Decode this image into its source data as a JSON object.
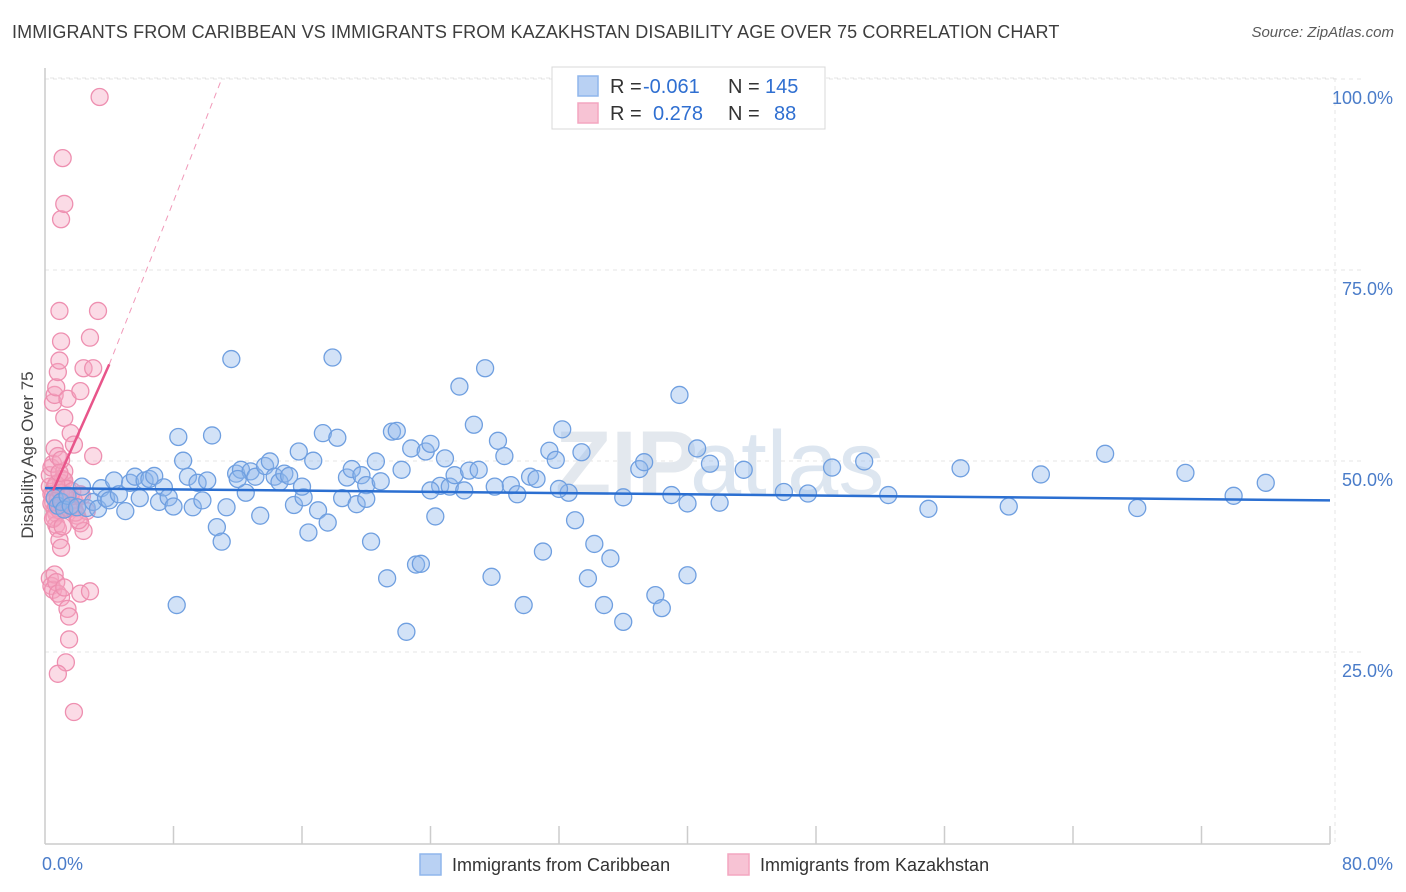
{
  "title": "IMMIGRANTS FROM CARIBBEAN VS IMMIGRANTS FROM KAZAKHSTAN DISABILITY AGE OVER 75 CORRELATION CHART",
  "source": "Source: ZipAtlas.com",
  "watermark": {
    "zip": "ZIP",
    "atlas": "atlas"
  },
  "legend": {
    "r_label": "R =",
    "n_label": "N =",
    "rows": [
      {
        "r": "-0.061",
        "n": "145"
      },
      {
        "r": "0.278",
        "n": "88"
      }
    ]
  },
  "chart_data": {
    "type": "scatter",
    "ylabel": "Disability Age Over 75",
    "x_tick_labels": [
      "0.0%",
      "80.0%"
    ],
    "y_tick_labels": [
      "100.0%",
      "75.0%",
      "50.0%",
      "25.0%"
    ],
    "xlim": [
      0,
      80
    ],
    "ylim": [
      0,
      102
    ],
    "grid": true,
    "legend_position": "top-center",
    "series": [
      {
        "name": "Immigrants from Caribbean",
        "color": "#8fb6ec",
        "line_color": "#2b6fd1",
        "trend": {
          "x": [
            0,
            80
          ],
          "y": [
            48.8,
            47.2
          ],
          "dashed_extension": false
        },
        "points": [
          [
            0.6,
            47.5
          ],
          [
            0.8,
            46.5
          ],
          [
            1.0,
            47.0
          ],
          [
            1.2,
            46.0
          ],
          [
            1.4,
            47.8
          ],
          [
            1.6,
            46.5
          ],
          [
            2.0,
            46.3
          ],
          [
            2.3,
            49.0
          ],
          [
            2.6,
            46.2
          ],
          [
            3.0,
            47.0
          ],
          [
            3.3,
            46.1
          ],
          [
            3.5,
            48.8
          ],
          [
            3.8,
            47.5
          ],
          [
            4.0,
            47.2
          ],
          [
            4.3,
            49.8
          ],
          [
            4.6,
            48.0
          ],
          [
            5.0,
            45.8
          ],
          [
            5.3,
            49.5
          ],
          [
            5.6,
            50.3
          ],
          [
            5.9,
            47.5
          ],
          [
            6.2,
            49.8
          ],
          [
            6.5,
            50.0
          ],
          [
            6.8,
            50.4
          ],
          [
            7.1,
            47.0
          ],
          [
            7.4,
            48.9
          ],
          [
            7.7,
            47.6
          ],
          [
            8.0,
            46.4
          ],
          [
            8.3,
            55.5
          ],
          [
            8.6,
            52.4
          ],
          [
            8.9,
            50.3
          ],
          [
            9.2,
            46.3
          ],
          [
            9.5,
            49.5
          ],
          [
            9.8,
            47.2
          ],
          [
            10.1,
            49.8
          ],
          [
            10.4,
            55.7
          ],
          [
            10.7,
            43.7
          ],
          [
            11.0,
            41.8
          ],
          [
            11.3,
            46.3
          ],
          [
            11.6,
            65.7
          ],
          [
            11.9,
            50.7
          ],
          [
            12.2,
            51.2
          ],
          [
            12.5,
            48.2
          ],
          [
            12.8,
            51.0
          ],
          [
            13.1,
            50.3
          ],
          [
            13.4,
            45.2
          ],
          [
            13.7,
            51.7
          ],
          [
            14.0,
            52.3
          ],
          [
            14.3,
            50.3
          ],
          [
            14.6,
            49.6
          ],
          [
            14.9,
            50.7
          ],
          [
            15.2,
            50.4
          ],
          [
            15.5,
            46.6
          ],
          [
            15.8,
            53.6
          ],
          [
            16.1,
            47.6
          ],
          [
            16.4,
            43.0
          ],
          [
            16.7,
            52.4
          ],
          [
            17.0,
            45.9
          ],
          [
            17.3,
            56.0
          ],
          [
            17.6,
            44.3
          ],
          [
            17.9,
            65.9
          ],
          [
            18.2,
            55.4
          ],
          [
            18.5,
            47.5
          ],
          [
            18.8,
            50.2
          ],
          [
            19.1,
            51.3
          ],
          [
            19.4,
            46.7
          ],
          [
            19.7,
            50.5
          ],
          [
            20.0,
            49.2
          ],
          [
            20.3,
            41.8
          ],
          [
            20.6,
            52.3
          ],
          [
            20.9,
            49.7
          ],
          [
            21.3,
            37.0
          ],
          [
            21.6,
            56.2
          ],
          [
            21.9,
            56.3
          ],
          [
            22.2,
            51.2
          ],
          [
            22.5,
            30.0
          ],
          [
            22.8,
            54.0
          ],
          [
            23.1,
            38.8
          ],
          [
            23.4,
            38.9
          ],
          [
            23.7,
            53.6
          ],
          [
            24.0,
            54.6
          ],
          [
            24.3,
            45.1
          ],
          [
            24.6,
            49.1
          ],
          [
            24.9,
            52.7
          ],
          [
            25.2,
            49.0
          ],
          [
            25.5,
            50.5
          ],
          [
            25.8,
            62.1
          ],
          [
            26.1,
            48.5
          ],
          [
            26.4,
            51.1
          ],
          [
            26.7,
            57.1
          ],
          [
            27.0,
            51.2
          ],
          [
            27.4,
            64.5
          ],
          [
            27.8,
            37.2
          ],
          [
            28.2,
            55.0
          ],
          [
            28.6,
            53.0
          ],
          [
            29.0,
            49.2
          ],
          [
            29.4,
            48.0
          ],
          [
            29.8,
            33.5
          ],
          [
            30.2,
            50.3
          ],
          [
            30.6,
            50.0
          ],
          [
            31.0,
            40.5
          ],
          [
            31.4,
            53.7
          ],
          [
            31.8,
            52.5
          ],
          [
            32.2,
            56.5
          ],
          [
            32.6,
            48.2
          ],
          [
            33.0,
            44.6
          ],
          [
            33.4,
            53.5
          ],
          [
            33.8,
            37.0
          ],
          [
            34.2,
            41.5
          ],
          [
            34.8,
            33.5
          ],
          [
            35.2,
            39.6
          ],
          [
            36.0,
            31.3
          ],
          [
            37.0,
            51.3
          ],
          [
            37.3,
            52.2
          ],
          [
            38.0,
            34.8
          ],
          [
            38.4,
            33.1
          ],
          [
            39.0,
            47.9
          ],
          [
            39.5,
            61.0
          ],
          [
            40.0,
            37.4
          ],
          [
            40.6,
            54.0
          ],
          [
            41.4,
            52.0
          ],
          [
            42.0,
            46.9
          ],
          [
            43.5,
            51.2
          ],
          [
            46.0,
            48.3
          ],
          [
            47.5,
            48.1
          ],
          [
            49.0,
            51.5
          ],
          [
            51.0,
            52.3
          ],
          [
            52.5,
            47.9
          ],
          [
            55.0,
            46.1
          ],
          [
            57.0,
            51.4
          ],
          [
            60.0,
            46.4
          ],
          [
            62.0,
            50.6
          ],
          [
            66.0,
            53.3
          ],
          [
            68.0,
            46.2
          ],
          [
            71.0,
            50.8
          ],
          [
            74.0,
            47.8
          ],
          [
            76.0,
            49.5
          ],
          [
            8.2,
            33.5
          ],
          [
            12.0,
            50.0
          ],
          [
            16.0,
            49.0
          ],
          [
            20.0,
            47.4
          ],
          [
            24.0,
            48.5
          ],
          [
            28.0,
            49.0
          ],
          [
            32.0,
            48.7
          ],
          [
            36.0,
            47.6
          ],
          [
            40.0,
            46.8
          ]
        ]
      },
      {
        "name": "Immigrants from Kazakhstan",
        "color": "#f4a6c0",
        "line_color": "#e8558a",
        "trend": {
          "x": [
            0.5,
            4.0
          ],
          "y": [
            48.5,
            65.0
          ],
          "dashed_extension": true,
          "dashed_to": [
            11.0,
            100.0
          ]
        },
        "points": [
          [
            0.3,
            49.0
          ],
          [
            0.4,
            48.0
          ],
          [
            0.5,
            47.0
          ],
          [
            0.6,
            46.0
          ],
          [
            0.7,
            45.5
          ],
          [
            0.8,
            47.5
          ],
          [
            0.9,
            48.5
          ],
          [
            1.0,
            49.5
          ],
          [
            1.1,
            46.5
          ],
          [
            1.2,
            47.0
          ],
          [
            0.3,
            50.5
          ],
          [
            0.4,
            51.5
          ],
          [
            0.5,
            52.0
          ],
          [
            0.6,
            45.0
          ],
          [
            0.7,
            44.0
          ],
          [
            0.8,
            43.5
          ],
          [
            0.9,
            42.0
          ],
          [
            1.0,
            41.0
          ],
          [
            1.1,
            50.0
          ],
          [
            1.2,
            51.0
          ],
          [
            0.3,
            37.0
          ],
          [
            0.4,
            36.0
          ],
          [
            0.5,
            35.5
          ],
          [
            0.6,
            37.5
          ],
          [
            0.7,
            36.5
          ],
          [
            0.8,
            35.0
          ],
          [
            1.0,
            34.5
          ],
          [
            1.2,
            35.8
          ],
          [
            1.4,
            33.0
          ],
          [
            1.5,
            32.0
          ],
          [
            0.5,
            60.0
          ],
          [
            0.6,
            61.0
          ],
          [
            0.7,
            62.0
          ],
          [
            0.8,
            64.0
          ],
          [
            0.9,
            65.5
          ],
          [
            1.0,
            68.0
          ],
          [
            1.2,
            58.0
          ],
          [
            1.4,
            60.5
          ],
          [
            1.6,
            56.0
          ],
          [
            1.8,
            54.5
          ],
          [
            0.6,
            54.0
          ],
          [
            0.8,
            53.0
          ],
          [
            1.0,
            52.5
          ],
          [
            1.2,
            49.8
          ],
          [
            1.4,
            48.7
          ],
          [
            1.6,
            47.7
          ],
          [
            1.8,
            46.2
          ],
          [
            2.0,
            45.2
          ],
          [
            2.2,
            44.2
          ],
          [
            2.4,
            43.2
          ],
          [
            0.9,
            72.0
          ],
          [
            1.0,
            84.0
          ],
          [
            1.2,
            86.0
          ],
          [
            1.1,
            92.0
          ],
          [
            3.4,
            100.0
          ],
          [
            3.3,
            72.0
          ],
          [
            2.8,
            68.5
          ],
          [
            2.4,
            64.5
          ],
          [
            2.2,
            61.5
          ],
          [
            3.0,
            64.5
          ],
          [
            1.5,
            29.0
          ],
          [
            1.3,
            26.0
          ],
          [
            0.8,
            24.5
          ],
          [
            1.8,
            19.5
          ],
          [
            2.2,
            35.0
          ],
          [
            2.8,
            35.3
          ],
          [
            2.6,
            45.8
          ],
          [
            3.0,
            53.0
          ],
          [
            2.2,
            48.0
          ],
          [
            1.8,
            47.2
          ],
          [
            0.4,
            46.8
          ],
          [
            0.5,
            47.9
          ],
          [
            0.6,
            48.9
          ],
          [
            0.7,
            46.4
          ],
          [
            0.8,
            47.3
          ],
          [
            0.9,
            45.9
          ],
          [
            1.0,
            48.2
          ],
          [
            1.1,
            46.9
          ],
          [
            1.3,
            47.6
          ],
          [
            1.5,
            46.1
          ],
          [
            1.7,
            48.4
          ],
          [
            1.9,
            45.6
          ],
          [
            2.1,
            44.6
          ],
          [
            2.3,
            47.8
          ],
          [
            0.5,
            44.8
          ],
          [
            0.7,
            49.3
          ],
          [
            0.9,
            50.8
          ],
          [
            1.1,
            43.8
          ]
        ]
      }
    ]
  }
}
